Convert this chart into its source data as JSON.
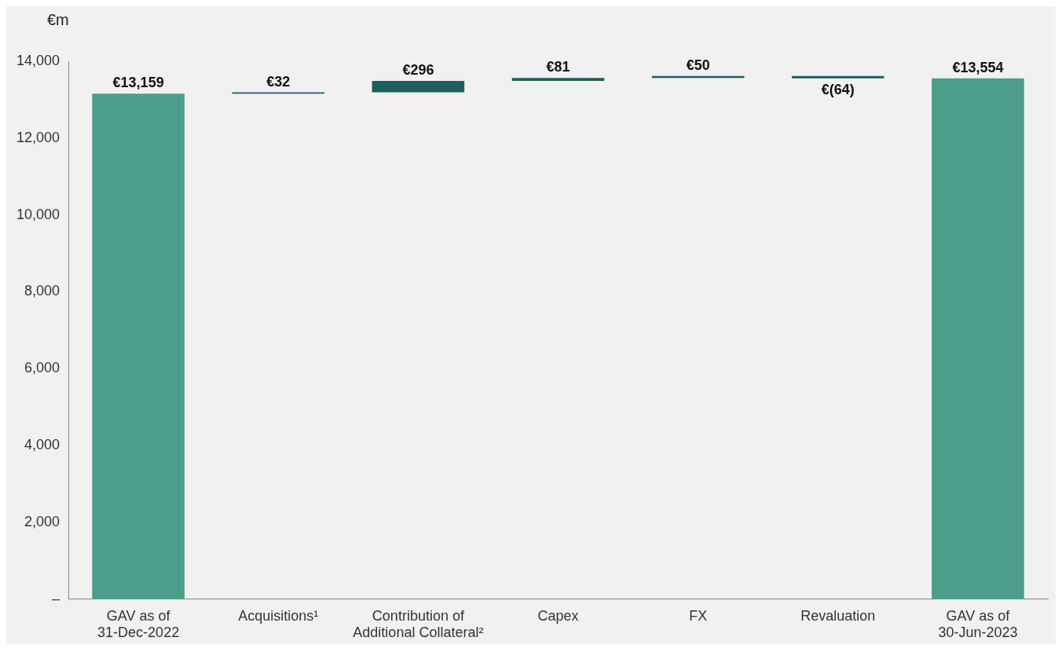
{
  "chart_data": {
    "type": "bar",
    "ylabel": "€m",
    "categories": [
      "GAV as of\n31-Dec-2022",
      "Acquisitions¹",
      "Contribution of\nAdditional Collateral²",
      "Capex",
      "FX",
      "Revaluation",
      "GAV as of\n30-Jun-2023"
    ],
    "values": [
      13159,
      32,
      296,
      81,
      50,
      -64,
      13554
    ],
    "base": [
      0,
      13159,
      13191,
      13487,
      13568,
      13618,
      0
    ],
    "colors": [
      "#4a9e8a",
      "#1e5f5c",
      "#1e5f5c",
      "#1e5f5c",
      "#1e5f5c",
      "#1e5f5c",
      "#4a9e8a"
    ],
    "value_labels": [
      "€13,159",
      "€32",
      "€296",
      "€81",
      "€50",
      "€(64)",
      "€13,554"
    ],
    "ylim": [
      0,
      14000
    ],
    "yticks": [
      {
        "value": 0,
        "label": "–"
      },
      {
        "value": 2000,
        "label": "2,000"
      },
      {
        "value": 4000,
        "label": "4,000"
      },
      {
        "value": 6000,
        "label": "6,000"
      },
      {
        "value": 8000,
        "label": "8,000"
      },
      {
        "value": 10000,
        "label": "10,000"
      },
      {
        "value": 12000,
        "label": "12,000"
      },
      {
        "value": 14000,
        "label": "14,000"
      }
    ],
    "grid": false,
    "legend": false
  }
}
